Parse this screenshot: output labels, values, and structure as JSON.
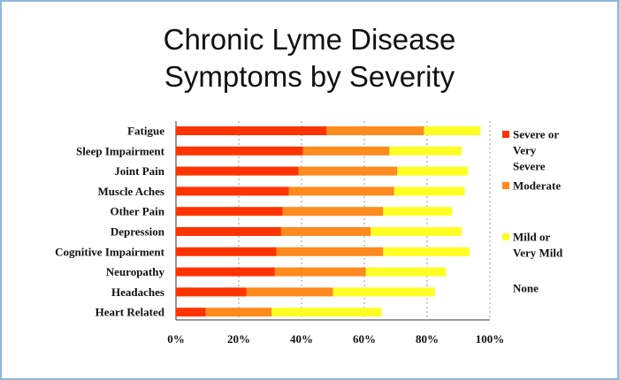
{
  "colors": {
    "severe": "#ff3300",
    "moderate": "#ff8a1e",
    "mild": "#ffff26",
    "none": "#ffffff",
    "border": "#8fb8d8"
  },
  "chart_data": {
    "type": "bar",
    "orientation": "horizontal",
    "stacked": true,
    "title_lines": [
      "Chronic Lyme Disease",
      "Symptoms by Severity"
    ],
    "categories": [
      "Fatigue",
      "Sleep Impairment",
      "Joint Pain",
      "Muscle Aches",
      "Other Pain",
      "Depression",
      "Cognitive Impairment",
      "Neuropathy",
      "Headaches",
      "Heart Related"
    ],
    "series": [
      {
        "name": "Severe or Very Severe",
        "legend_lines": [
          "Severe or",
          "Very",
          "Severe"
        ],
        "color": "#ff3300",
        "values": [
          48,
          40.5,
          39,
          36,
          34,
          33.5,
          32,
          31.5,
          22.5,
          9.5
        ]
      },
      {
        "name": "Moderate",
        "legend_lines": [
          "Moderate"
        ],
        "color": "#ff8a1e",
        "values": [
          31,
          27.5,
          31.5,
          33.5,
          32,
          28.5,
          34,
          29,
          27.5,
          21
        ]
      },
      {
        "name": "Mild or Very Mild",
        "legend_lines": [
          "Mild or",
          "Very Mild"
        ],
        "color": "#ffff26",
        "values": [
          18,
          23,
          22.5,
          22.5,
          22,
          29,
          27.5,
          25.5,
          32.5,
          35
        ]
      },
      {
        "name": "None",
        "legend_lines": [
          "None"
        ],
        "color": "#ffffff",
        "values": [
          3,
          9,
          7,
          8,
          12,
          9,
          6.5,
          14,
          17.5,
          34.5
        ]
      }
    ],
    "xlim": [
      0,
      100
    ],
    "x_ticks": [
      0,
      20,
      40,
      60,
      80,
      100
    ],
    "x_tick_labels": [
      "0%",
      "20%",
      "40%",
      "60%",
      "80%",
      "100%"
    ],
    "grid": "vertical dashed",
    "legend_position": "right"
  }
}
